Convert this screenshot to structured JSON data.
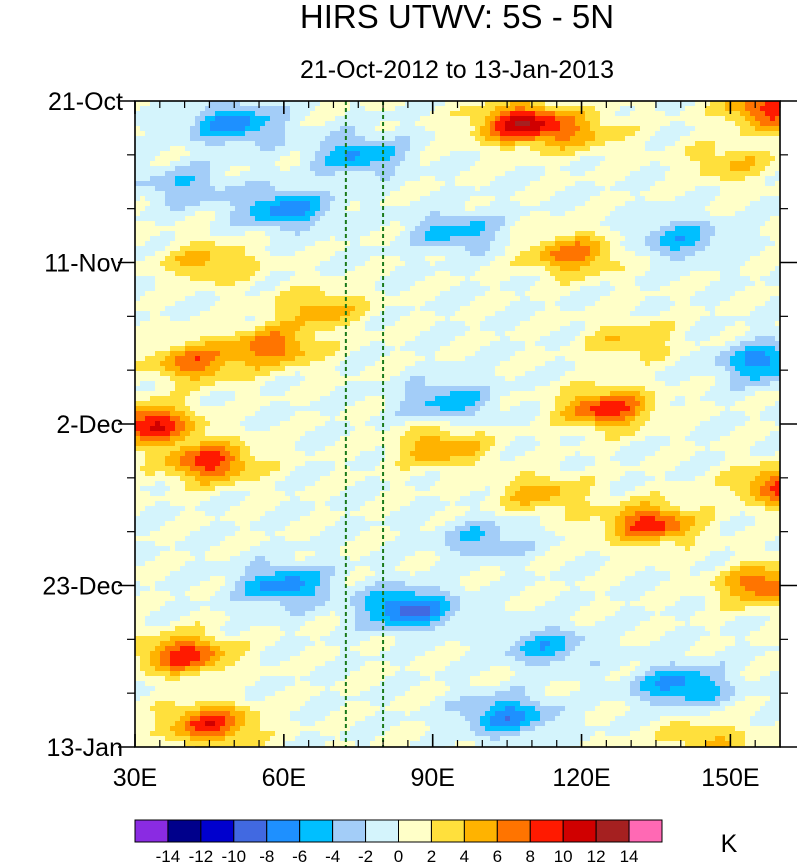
{
  "chart_data": {
    "type": "heatmap",
    "title": "HIRS UTWV: 5S - 5N",
    "subtitle": "21-Oct-2012 to 13-Jan-2013",
    "x_axis": {
      "range": [
        30,
        160
      ],
      "ticks": [
        {
          "value": 30,
          "label": "30E"
        },
        {
          "value": 60,
          "label": "60E"
        },
        {
          "value": 90,
          "label": "90E"
        },
        {
          "value": 120,
          "label": "120E"
        },
        {
          "value": 150,
          "label": "150E"
        }
      ],
      "minor_step": 5
    },
    "y_axis": {
      "range_days": [
        0,
        84
      ],
      "ticks": [
        {
          "day": 0,
          "label": "21-Oct"
        },
        {
          "day": 21,
          "label": "11-Nov"
        },
        {
          "day": 42,
          "label": "2-Dec"
        },
        {
          "day": 63,
          "label": "23-Dec"
        },
        {
          "day": 84,
          "label": "13-Jan"
        }
      ],
      "minor_step_days": 7
    },
    "reference_lines_lon": [
      72.5,
      80
    ],
    "colorbar": {
      "unit": "K",
      "levels": [
        -14,
        -12,
        -10,
        -8,
        -6,
        -4,
        -2,
        0,
        2,
        4,
        6,
        8,
        10,
        12,
        14
      ],
      "labels": [
        "-14",
        "-12",
        "-10",
        "-8",
        "-6",
        "-4",
        "-2",
        "0",
        "2",
        "4",
        "6",
        "8",
        "10",
        "12",
        "14"
      ],
      "colors": [
        "#8a2be2",
        "#00008b",
        "#0000cd",
        "#4169e1",
        "#1e90ff",
        "#00bfff",
        "#a3cdf8",
        "#d4f4fc",
        "#ffffc8",
        "#ffe03c",
        "#ffb300",
        "#ff7400",
        "#ff1a00",
        "#d00000",
        "#a52020",
        "#ff69b4"
      ]
    },
    "anomaly_features": [
      {
        "lon": 108,
        "day": 3,
        "value": 11
      },
      {
        "lon": 120,
        "day": 4,
        "value": 4
      },
      {
        "lon": 158,
        "day": 1,
        "value": 9
      },
      {
        "lon": 150,
        "day": 8,
        "value": 4
      },
      {
        "lon": 50,
        "day": 3,
        "value": -7
      },
      {
        "lon": 75,
        "day": 7,
        "value": -6
      },
      {
        "lon": 60,
        "day": 14,
        "value": -7
      },
      {
        "lon": 40,
        "day": 11,
        "value": -4
      },
      {
        "lon": 95,
        "day": 17,
        "value": -5
      },
      {
        "lon": 140,
        "day": 18,
        "value": -5
      },
      {
        "lon": 118,
        "day": 20,
        "value": 7
      },
      {
        "lon": 45,
        "day": 21,
        "value": 5
      },
      {
        "lon": 67,
        "day": 27,
        "value": 5
      },
      {
        "lon": 58,
        "day": 32,
        "value": 7
      },
      {
        "lon": 42,
        "day": 34,
        "value": 7
      },
      {
        "lon": 130,
        "day": 31,
        "value": 4
      },
      {
        "lon": 157,
        "day": 34,
        "value": -7
      },
      {
        "lon": 93,
        "day": 39,
        "value": -5
      },
      {
        "lon": 125,
        "day": 40,
        "value": 9
      },
      {
        "lon": 33,
        "day": 42,
        "value": 10
      },
      {
        "lon": 45,
        "day": 47,
        "value": 9
      },
      {
        "lon": 92,
        "day": 45,
        "value": 6
      },
      {
        "lon": 160,
        "day": 50,
        "value": 8
      },
      {
        "lon": 134,
        "day": 55,
        "value": 9
      },
      {
        "lon": 112,
        "day": 51,
        "value": 5
      },
      {
        "lon": 100,
        "day": 57,
        "value": -4
      },
      {
        "lon": 60,
        "day": 63,
        "value": -7
      },
      {
        "lon": 85,
        "day": 66,
        "value": -9
      },
      {
        "lon": 157,
        "day": 63,
        "value": 8
      },
      {
        "lon": 40,
        "day": 72,
        "value": 9
      },
      {
        "lon": 113,
        "day": 71,
        "value": -5
      },
      {
        "lon": 140,
        "day": 76,
        "value": -7
      },
      {
        "lon": 105,
        "day": 80,
        "value": -7
      },
      {
        "lon": 45,
        "day": 81,
        "value": 9
      },
      {
        "lon": 145,
        "day": 83,
        "value": 4
      }
    ]
  }
}
